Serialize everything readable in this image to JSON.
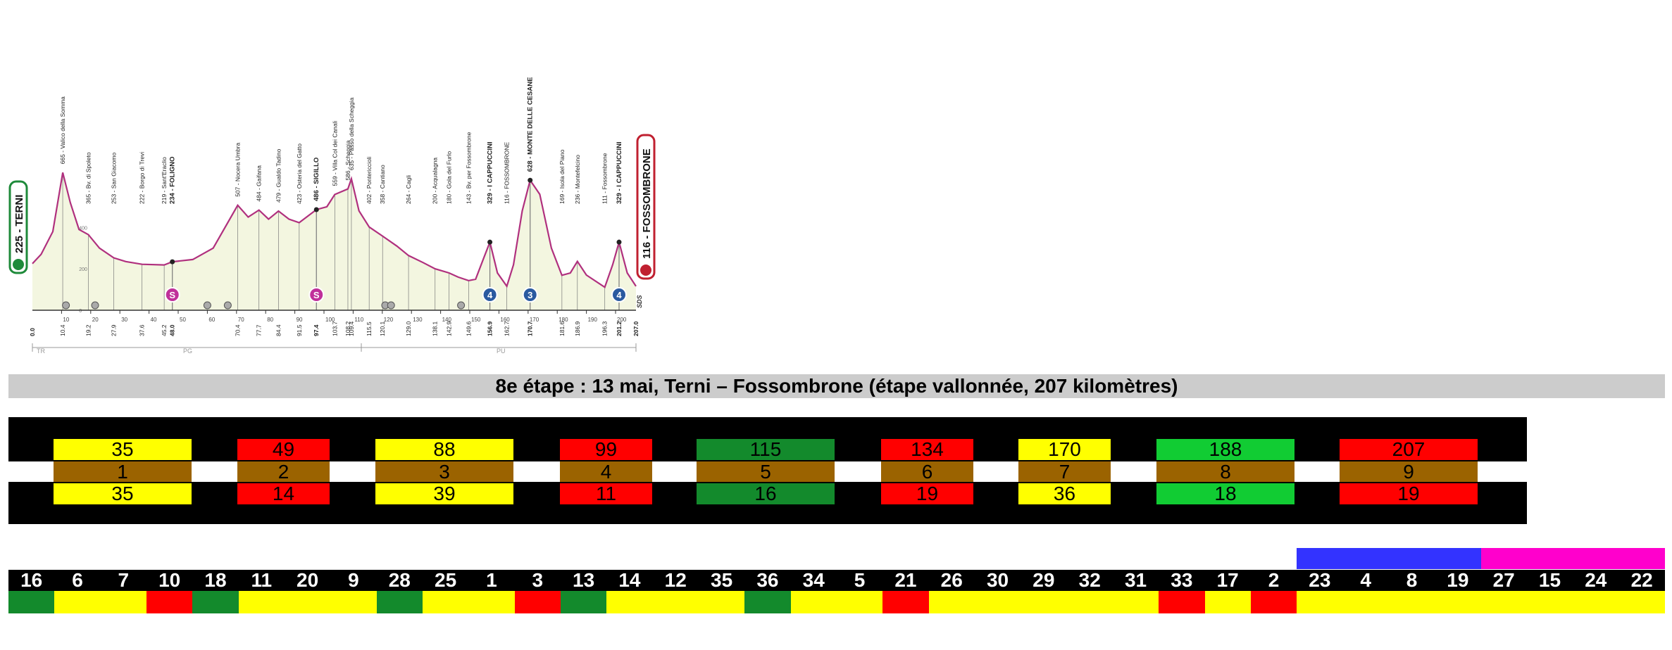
{
  "profile": {
    "start_city": "225 - TERNI",
    "finish_city": "116 - FOSSOMBRONE",
    "alt_scale": [
      "400",
      "200",
      "0"
    ],
    "sds": "SDS",
    "labels": [
      {
        "km": 10.4,
        "text": "665 - Valico della Somma",
        "bold": false
      },
      {
        "km": 19.2,
        "text": "365 - Bv. di Spoleto",
        "bold": false
      },
      {
        "km": 27.9,
        "text": "253 - San Giacomo",
        "bold": false
      },
      {
        "km": 37.6,
        "text": "222 - Borgo di Trevi",
        "bold": false
      },
      {
        "km": 45.2,
        "text": "219 - Sant'Eraclio",
        "bold": false
      },
      {
        "km": 48.0,
        "text": "234 - FOLIGNO",
        "bold": true
      },
      {
        "km": 70.4,
        "text": "507 - Nocera Umbra",
        "bold": false
      },
      {
        "km": 77.7,
        "text": "484 - Gaifana",
        "bold": false
      },
      {
        "km": 84.4,
        "text": "479 - Gualdo Tadino",
        "bold": false
      },
      {
        "km": 91.5,
        "text": "423 - Osteria del Gatto",
        "bold": false
      },
      {
        "km": 97.4,
        "text": "486 - SIGILLO",
        "bold": true
      },
      {
        "km": 103.7,
        "text": "559 - Villa Col dei Canali",
        "bold": false
      },
      {
        "km": 108.2,
        "text": "586 - Scheggia",
        "bold": false
      },
      {
        "km": 109.4,
        "text": "635 - Passo della Scheggia",
        "bold": false
      },
      {
        "km": 115.5,
        "text": "402 - Pontericcioli",
        "bold": false
      },
      {
        "km": 120.1,
        "text": "358 - Cantiano",
        "bold": false
      },
      {
        "km": 129.0,
        "text": "264 - Cagli",
        "bold": false
      },
      {
        "km": 138.1,
        "text": "200 - Acqualagna",
        "bold": false
      },
      {
        "km": 142.9,
        "text": "180 - Gola del Furlo",
        "bold": false
      },
      {
        "km": 149.6,
        "text": "143 - Bv. per Fossombrone",
        "bold": false
      },
      {
        "km": 156.9,
        "text": "329 - I CAPPUCCINI",
        "bold": true
      },
      {
        "km": 162.7,
        "text": "116 - FOSSOMBRONE",
        "bold": false
      },
      {
        "km": 170.7,
        "text": "628 - MONTE DELLE CESANE",
        "bold": true
      },
      {
        "km": 181.6,
        "text": "169 - Isola del Piano",
        "bold": false
      },
      {
        "km": 186.9,
        "text": "236 - Montefelcino",
        "bold": false
      },
      {
        "km": 196.3,
        "text": "111 - Fossombrone",
        "bold": false
      },
      {
        "km": 201.2,
        "text": "329 - I CAPPUCCINI",
        "bold": true
      }
    ],
    "km_labels": [
      {
        "km": 0,
        "text": "0.0",
        "bold": true
      },
      {
        "km": 10.4,
        "text": "10.4",
        "bold": false
      },
      {
        "km": 19.2,
        "text": "19.2",
        "bold": false
      },
      {
        "km": 27.9,
        "text": "27.9",
        "bold": false
      },
      {
        "km": 37.6,
        "text": "37.6",
        "bold": false
      },
      {
        "km": 45.2,
        "text": "45.2",
        "bold": false
      },
      {
        "km": 48.0,
        "text": "48.0",
        "bold": true
      },
      {
        "km": 70.4,
        "text": "70.4",
        "bold": false
      },
      {
        "km": 77.7,
        "text": "77.7",
        "bold": false
      },
      {
        "km": 84.4,
        "text": "84.4",
        "bold": false
      },
      {
        "km": 91.5,
        "text": "91.5",
        "bold": false
      },
      {
        "km": 97.4,
        "text": "97.4",
        "bold": true
      },
      {
        "km": 103.7,
        "text": "103.7",
        "bold": false
      },
      {
        "km": 108.2,
        "text": "108.2",
        "bold": false
      },
      {
        "km": 109.4,
        "text": "109.4",
        "bold": false
      },
      {
        "km": 115.5,
        "text": "115.5",
        "bold": false
      },
      {
        "km": 120.1,
        "text": "120.1",
        "bold": false
      },
      {
        "km": 129.0,
        "text": "129.0",
        "bold": false
      },
      {
        "km": 138.1,
        "text": "138.1",
        "bold": false
      },
      {
        "km": 142.9,
        "text": "142.9",
        "bold": false
      },
      {
        "km": 149.6,
        "text": "149.6",
        "bold": false
      },
      {
        "km": 156.9,
        "text": "156.9",
        "bold": true
      },
      {
        "km": 162.7,
        "text": "162.7",
        "bold": false
      },
      {
        "km": 170.7,
        "text": "170.7",
        "bold": true
      },
      {
        "km": 181.6,
        "text": "181.6",
        "bold": false
      },
      {
        "km": 186.9,
        "text": "186.9",
        "bold": false
      },
      {
        "km": 196.3,
        "text": "196.3",
        "bold": false
      },
      {
        "km": 201.2,
        "text": "201.2",
        "bold": true
      },
      {
        "km": 207.0,
        "text": "207.0",
        "bold": true
      }
    ],
    "axis_ticks": [
      "10",
      "20",
      "30",
      "40",
      "50",
      "60",
      "70",
      "80",
      "90",
      "100",
      "110",
      "120",
      "130",
      "140",
      "150",
      "160",
      "170",
      "180",
      "190",
      "200"
    ],
    "regions": [
      "TR",
      "PG",
      "PU"
    ],
    "climb_markers": [
      {
        "km": 48.0,
        "label": "S",
        "color": "#c0309a"
      },
      {
        "km": 97.4,
        "label": "S",
        "color": "#c0309a"
      },
      {
        "km": 156.9,
        "label": "4",
        "color": "#2a5aa0"
      },
      {
        "km": 170.7,
        "label": "3",
        "color": "#2a5aa0"
      },
      {
        "km": 201.2,
        "label": "4",
        "color": "#2a5aa0"
      }
    ],
    "small_icons_km": [
      11.5,
      21.5,
      60.0,
      67.0,
      121.0,
      123.0,
      147.0
    ],
    "elevation": [
      [
        0,
        225
      ],
      [
        3,
        270
      ],
      [
        7,
        380
      ],
      [
        10.4,
        665
      ],
      [
        13,
        520
      ],
      [
        16,
        390
      ],
      [
        19.2,
        365
      ],
      [
        23,
        300
      ],
      [
        27.9,
        253
      ],
      [
        32,
        235
      ],
      [
        37.6,
        222
      ],
      [
        45.2,
        219
      ],
      [
        48,
        234
      ],
      [
        55,
        245
      ],
      [
        62,
        300
      ],
      [
        70.4,
        507
      ],
      [
        74,
        450
      ],
      [
        77.7,
        484
      ],
      [
        81,
        440
      ],
      [
        84.4,
        479
      ],
      [
        88,
        440
      ],
      [
        91.5,
        423
      ],
      [
        94,
        450
      ],
      [
        97.4,
        486
      ],
      [
        101,
        500
      ],
      [
        103.7,
        559
      ],
      [
        108.2,
        586
      ],
      [
        109.4,
        635
      ],
      [
        112,
        480
      ],
      [
        115.5,
        402
      ],
      [
        120.1,
        358
      ],
      [
        125,
        310
      ],
      [
        129,
        264
      ],
      [
        134,
        230
      ],
      [
        138.1,
        200
      ],
      [
        142.9,
        180
      ],
      [
        146,
        160
      ],
      [
        149.6,
        143
      ],
      [
        152,
        150
      ],
      [
        155,
        260
      ],
      [
        156.9,
        329
      ],
      [
        159.5,
        180
      ],
      [
        162.7,
        116
      ],
      [
        165,
        220
      ],
      [
        168,
        480
      ],
      [
        170.7,
        628
      ],
      [
        174,
        560
      ],
      [
        178,
        300
      ],
      [
        181.6,
        169
      ],
      [
        184.5,
        180
      ],
      [
        186.9,
        236
      ],
      [
        190,
        170
      ],
      [
        196.3,
        111
      ],
      [
        199,
        220
      ],
      [
        201.2,
        329
      ],
      [
        204,
        180
      ],
      [
        207,
        116
      ]
    ]
  },
  "stage_title": "8e étape : 13 mai, Terni – Fossombrone (étape vallonnée, 207 kilomètres)",
  "kilometre_blocks": [
    {
      "top": "35",
      "middle": "1",
      "bottom": "35",
      "color": "#ffff00"
    },
    {
      "top": "49",
      "middle": "2",
      "bottom": "14",
      "color": "#ff0000"
    },
    {
      "top": "88",
      "middle": "3",
      "bottom": "39",
      "color": "#ffff00"
    },
    {
      "top": "99",
      "middle": "4",
      "bottom": "11",
      "color": "#ff0000"
    },
    {
      "top": "115",
      "middle": "5",
      "bottom": "16",
      "color": "#138a2c"
    },
    {
      "top": "134",
      "middle": "6",
      "bottom": "19",
      "color": "#ff0000"
    },
    {
      "top": "170",
      "middle": "7",
      "bottom": "36",
      "color": "#ffff00"
    },
    {
      "top": "188",
      "middle": "8",
      "bottom": "18",
      "color": "#11cc33"
    },
    {
      "top": "207",
      "middle": "9",
      "bottom": "19",
      "color": "#ff0000"
    }
  ],
  "middle_row_color": "#9b6300",
  "summary_numbers": [
    "16",
    "6",
    "7",
    "10",
    "18",
    "11",
    "20",
    "9",
    "28",
    "25",
    "1",
    "3",
    "13",
    "14",
    "12",
    "35",
    "36",
    "34",
    "5",
    "21",
    "26",
    "30",
    "29",
    "32",
    "31",
    "33",
    "17",
    "2",
    "23",
    "4",
    "8",
    "19",
    "27",
    "15",
    "24",
    "22"
  ],
  "summary_colors": [
    "#138a2c",
    "#ffff00",
    "#ffff00",
    "#ff0000",
    "#138a2c",
    "#ffff00",
    "#ffff00",
    "#ffff00",
    "#138a2c",
    "#ffff00",
    "#ffff00",
    "#ff0000",
    "#138a2c",
    "#ffff00",
    "#ffff00",
    "#ffff00",
    "#138a2c",
    "#ffff00",
    "#ffff00",
    "#ff0000",
    "#ffff00",
    "#ffff00",
    "#ffff00",
    "#ffff00",
    "#ffff00",
    "#ff0000",
    "#ffff00",
    "#ff0000",
    "#ffff00",
    "#ffff00",
    "#ffff00",
    "#ffff00",
    "#ffff00",
    "#ffff00",
    "#ffff00",
    "#ffff00"
  ],
  "legend_bars": [
    {
      "from_index": 28,
      "to_index": 31,
      "color": "#3333ff"
    },
    {
      "from_index": 32,
      "to_index": 35,
      "color": "#ff00cc"
    }
  ]
}
